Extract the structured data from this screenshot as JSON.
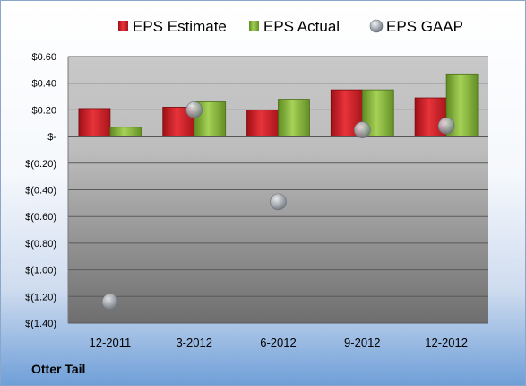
{
  "company_label": "Otter Tail",
  "chart_data": {
    "type": "bar",
    "categories": [
      "12-2011",
      "3-2012",
      "6-2012",
      "9-2012",
      "12-2012"
    ],
    "series": [
      {
        "name": "EPS Estimate",
        "type": "bar",
        "color": "#d9242b",
        "values": [
          0.21,
          0.22,
          0.2,
          0.35,
          0.29
        ]
      },
      {
        "name": "EPS Actual",
        "type": "bar",
        "color": "#8fbf3c",
        "values": [
          0.07,
          0.26,
          0.28,
          0.35,
          0.47
        ]
      },
      {
        "name": "EPS GAAP",
        "type": "scatter",
        "color": "#9aa4b0",
        "values": [
          -1.24,
          0.2,
          -0.49,
          0.05,
          0.08
        ]
      }
    ],
    "ylim": [
      -1.4,
      0.6
    ],
    "yticks": [
      0.6,
      0.4,
      0.2,
      0,
      -0.2,
      -0.4,
      -0.6,
      -0.8,
      -1.0,
      -1.2,
      -1.4
    ],
    "ytick_labels": [
      "$0.60",
      "$0.40",
      "$0.20",
      "$-",
      "$(0.20)",
      "$(0.40)",
      "$(0.60)",
      "$(0.80)",
      "$(1.00)",
      "$(1.20)",
      "$(1.40)"
    ],
    "legend_position": "top",
    "grid": true
  }
}
